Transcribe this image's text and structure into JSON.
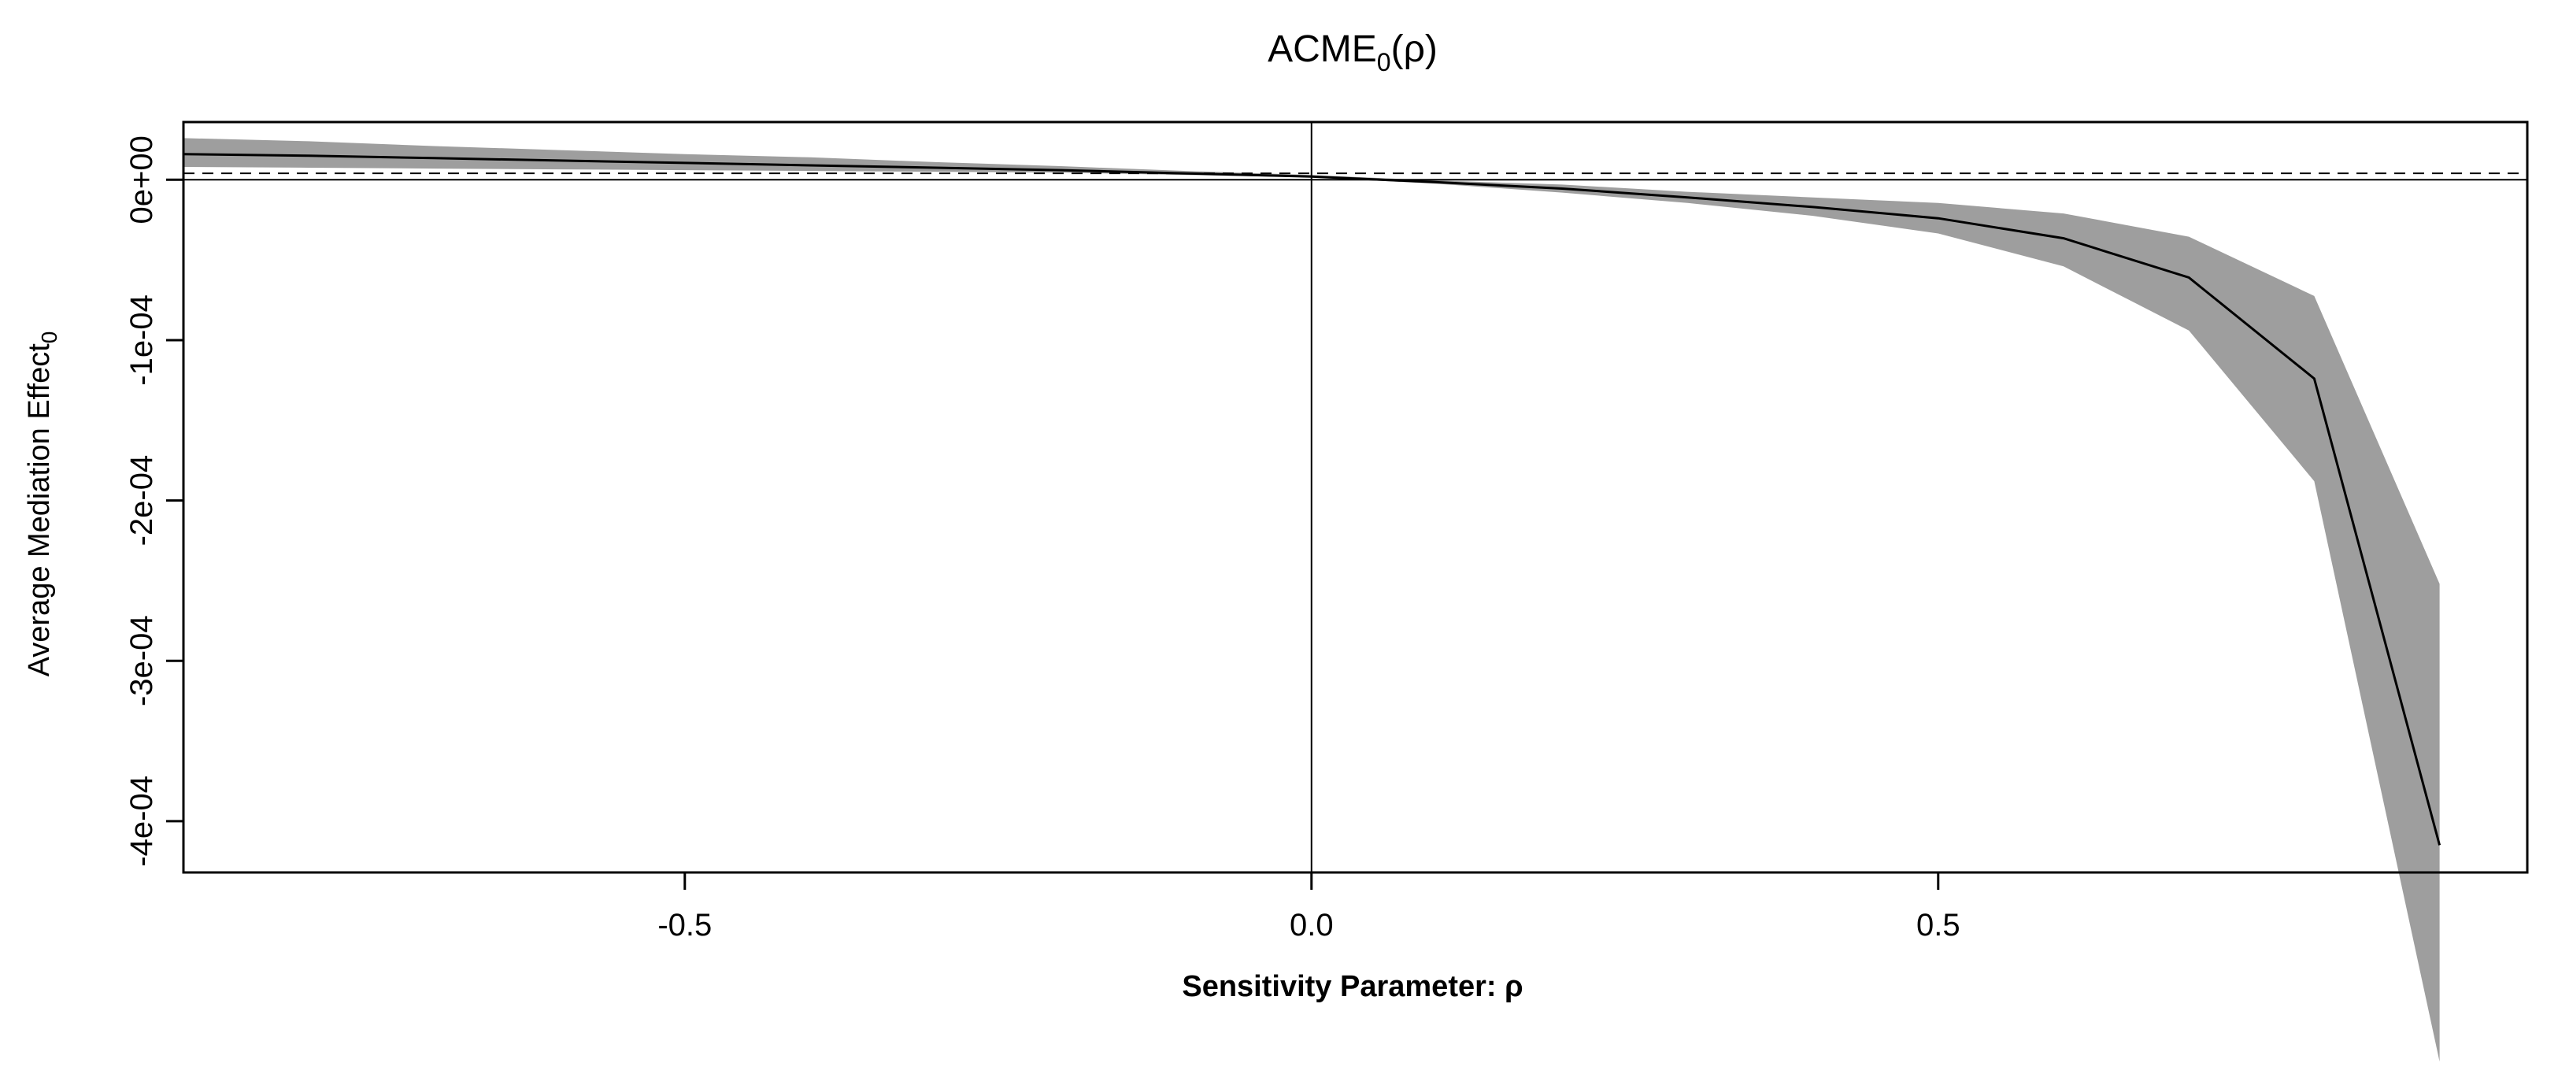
{
  "chart_data": {
    "type": "line",
    "title": {
      "main": "ACME",
      "sub": "0",
      "tail": "(ρ)"
    },
    "xlabel": "Sensitivity Parameter: ρ",
    "ylabel": {
      "main": "Average Mediation Effect",
      "sub": "0"
    },
    "xlim": [
      -0.9,
      0.97
    ],
    "ylim": [
      -0.000432,
      3.6e-05
    ],
    "x_ticks": [
      {
        "value": -0.5,
        "label": "-0.5"
      },
      {
        "value": 0.0,
        "label": "0.0"
      },
      {
        "value": 0.5,
        "label": "0.5"
      }
    ],
    "y_ticks": [
      {
        "value": 0.0,
        "label": "0e+00"
      },
      {
        "value": -0.0001,
        "label": "-1e-04"
      },
      {
        "value": -0.0002,
        "label": "-2e-04"
      },
      {
        "value": -0.0003,
        "label": "-3e-04"
      },
      {
        "value": -0.0004,
        "label": "-4e-04"
      }
    ],
    "reference_lines": {
      "horizontal_solid_y": 0.0,
      "horizontal_dashed_y": 4e-06,
      "vertical_solid_x": 0.0
    },
    "series": [
      {
        "x": [
          -0.9,
          -0.8,
          -0.7,
          -0.6,
          -0.5,
          -0.4,
          -0.3,
          -0.2,
          -0.1,
          0.0,
          0.1,
          0.2,
          0.3,
          0.4,
          0.5,
          0.6,
          0.7,
          0.8,
          0.9
        ],
        "estimate": [
          1.6e-05,
          1.5e-05,
          1.35e-05,
          1.2e-05,
          1.05e-05,
          9e-06,
          7.5e-06,
          6e-06,
          4e-06,
          2e-06,
          -1.5e-06,
          -5.5e-06,
          -1.1e-05,
          -1.7e-05,
          -2.4e-05,
          -3.65e-05,
          -6.1e-05,
          -0.000124,
          -0.000415
        ],
        "lower": [
          8e-06,
          7.5e-06,
          7e-06,
          6.5e-06,
          6e-06,
          5.5e-06,
          5e-06,
          4.5e-06,
          3e-06,
          1.5e-06,
          -2.5e-06,
          -8e-06,
          -1.45e-05,
          -2.25e-05,
          -3.35e-05,
          -5.4e-05,
          -9.4e-05,
          -0.000188,
          -0.00055
        ],
        "upper": [
          2.6e-05,
          2.4e-05,
          2.1e-05,
          1.85e-05,
          1.6e-05,
          1.4e-05,
          1.1e-05,
          8.5e-06,
          5.5e-06,
          3e-06,
          -5e-07,
          -3e-06,
          -7.5e-06,
          -1.1e-05,
          -1.45e-05,
          -2.1e-05,
          -3.55e-05,
          -7.25e-05,
          -0.000252
        ]
      }
    ],
    "band_color": "#9e9e9e",
    "line_color": "#000000"
  }
}
